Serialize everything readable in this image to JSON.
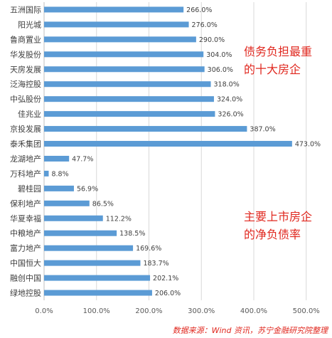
{
  "chart_data": {
    "type": "bar",
    "orientation": "horizontal",
    "categories": [
      "五洲国际",
      "阳光城",
      "鲁商置业",
      "华发股份",
      "天房发展",
      "泛海控股",
      "中弘股份",
      "佳兆业",
      "京投发展",
      "泰禾集团",
      "龙湖地产",
      "万科地产",
      "碧桂园",
      "保利地产",
      "华夏幸福",
      "中粮地产",
      "富力地产",
      "中国恒大",
      "融创中国",
      "绿地控股"
    ],
    "values": [
      266.0,
      276.0,
      290.0,
      304.0,
      306.0,
      318.0,
      324.0,
      326.0,
      387.0,
      473.0,
      47.7,
      8.8,
      56.9,
      86.5,
      112.2,
      138.5,
      169.6,
      183.7,
      202.1,
      206.0
    ],
    "value_labels": [
      "266.0%",
      "276.0%",
      "290.0%",
      "304.0%",
      "306.0%",
      "318.0%",
      "324.0%",
      "326.0%",
      "387.0%",
      "473.0%",
      "47.7%",
      "8.8%",
      "56.9%",
      "86.5%",
      "112.2%",
      "138.5%",
      "169.6%",
      "183.7%",
      "202.1%",
      "206.0%"
    ],
    "xlim": [
      0,
      500
    ],
    "x_ticks": [
      "0.0%",
      "100.0%",
      "200.0%",
      "300.0%",
      "400.0%",
      "500.0%"
    ],
    "grid": true,
    "bar_color": "#5b9bd5",
    "annotation_top": [
      "债务负担最重",
      "的十大房企"
    ],
    "annotation_bottom": [
      "主要上市房企",
      "的净负债率"
    ],
    "annotation_color": "#e0281f"
  },
  "source": "数据来源：Wind 资讯，苏宁金融研究院整理"
}
